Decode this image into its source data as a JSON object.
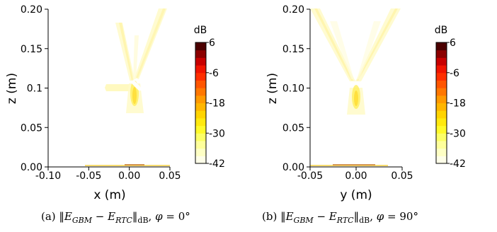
{
  "chart_data": [
    {
      "type": "heatmap",
      "xlabel": "x (m)",
      "ylabel": "z (m)",
      "xlim": [
        -0.1,
        0.05
      ],
      "ylim": [
        0.0,
        0.2
      ],
      "x_ticks": [
        "-0.10",
        "-0.05",
        "0.00",
        "0.05"
      ],
      "x_tick_values": [
        -0.1,
        -0.05,
        0.0,
        0.05
      ],
      "y_ticks": [
        "0.00",
        "0.05",
        "0.1",
        "0.15",
        "0.20"
      ],
      "y_tick_values": [
        0.0,
        0.05,
        0.1,
        0.15,
        0.2
      ],
      "grid": false,
      "colorbar": {
        "unit": "dB",
        "range": [
          -42,
          6
        ],
        "ticks": [
          "6",
          "-6",
          "-18",
          "-30",
          "-42"
        ],
        "tick_values": [
          6,
          -6,
          -18,
          -30,
          -42
        ],
        "colors": [
          "#fefee8",
          "#feffc4",
          "#feff9b",
          "#fcff66",
          "#fffa2a",
          "#ffe90e",
          "#ffd400",
          "#ffb600",
          "#ff9a00",
          "#ff7700",
          "#ff5500",
          "#ff2f00",
          "#f01400",
          "#c80000",
          "#8c0000",
          "#4b0000"
        ]
      },
      "field_regions": [
        {
          "x": [
            -0.005,
            0.005
          ],
          "z": [
            0.11,
            0.18
          ],
          "level": -40
        },
        {
          "x": [
            0.005,
            0.03
          ],
          "z": [
            0.11,
            0.2
          ],
          "level": -40
        },
        {
          "x": [
            -0.035,
            -0.005
          ],
          "z": [
            0.098,
            0.104
          ],
          "level": -38
        },
        {
          "x": [
            -0.005,
            0.005
          ],
          "z": [
            0.07,
            0.1
          ],
          "level": -33
        },
        {
          "x": [
            -0.01,
            0.01
          ],
          "z": [
            0.075,
            0.095
          ],
          "level": -38
        },
        {
          "x": [
            -0.05,
            0.03
          ],
          "z": [
            0.0,
            0.003
          ],
          "level": -30
        }
      ],
      "caption": "(a)  ‖E_GBM − E_RTC‖_dB,  φ = 0°"
    },
    {
      "type": "heatmap",
      "xlabel": "y (m)",
      "ylabel": "z (m)",
      "xlim": [
        -0.05,
        0.05
      ],
      "ylim": [
        0.0,
        0.2
      ],
      "x_ticks": [
        "-0.05",
        "0.00",
        "0.05"
      ],
      "x_tick_values": [
        -0.05,
        0.0,
        0.05
      ],
      "y_ticks": [
        "0.00",
        "0.05",
        "0.10",
        "0.15",
        "0.20"
      ],
      "y_tick_values": [
        0.0,
        0.05,
        0.1,
        0.15,
        0.2
      ],
      "grid": false,
      "colorbar": {
        "unit": "dB",
        "range": [
          -42,
          6
        ],
        "ticks": [
          "6",
          "-6",
          "-18",
          "-30",
          "-42"
        ],
        "tick_values": [
          6,
          -6,
          -18,
          -30,
          -42
        ],
        "colors": [
          "#fefee8",
          "#feffc4",
          "#feff9b",
          "#fcff66",
          "#fffa2a",
          "#ffe90e",
          "#ffd400",
          "#ffb600",
          "#ff9a00",
          "#ff7700",
          "#ff5500",
          "#ff2f00",
          "#f01400",
          "#c80000",
          "#8c0000",
          "#4b0000"
        ]
      },
      "field_regions": [
        {
          "y": [
            -0.04,
            0.0
          ],
          "z": [
            0.11,
            0.2
          ],
          "level": -40
        },
        {
          "y": [
            0.0,
            0.04
          ],
          "z": [
            0.11,
            0.2
          ],
          "level": -40
        },
        {
          "y": [
            -0.005,
            0.005
          ],
          "z": [
            0.07,
            0.1
          ],
          "level": -33
        },
        {
          "y": [
            -0.05,
            0.03
          ],
          "z": [
            0.0,
            0.003
          ],
          "level": -30
        }
      ],
      "caption": "(b)  ‖E_GBM − E_RTC‖_dB,  φ = 90°"
    }
  ]
}
